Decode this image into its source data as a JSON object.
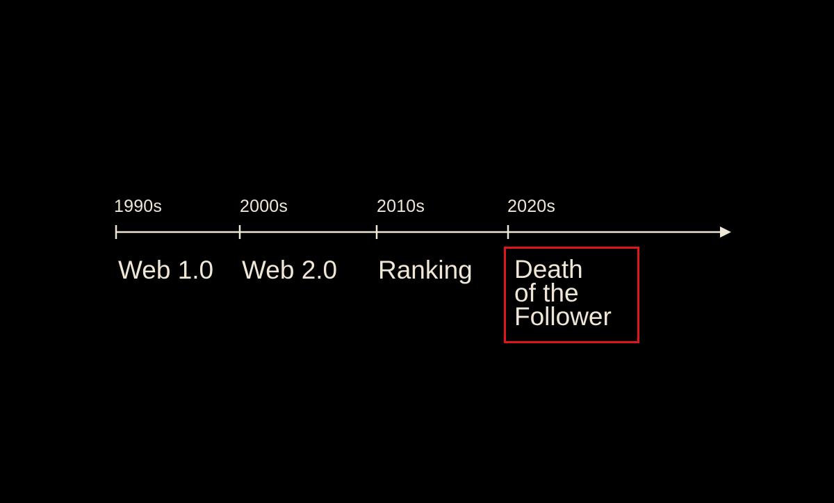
{
  "timeline": {
    "decades": [
      "1990s",
      "2000s",
      "2010s",
      "2020s"
    ],
    "eras": [
      "Web 1.0",
      "Web 2.0",
      "Ranking"
    ],
    "highlighted_era_lines": [
      "Death",
      "of the",
      "Follower"
    ]
  },
  "colors": {
    "background": "#000000",
    "text": "#efe6d8",
    "highlight": "#e0161b"
  }
}
